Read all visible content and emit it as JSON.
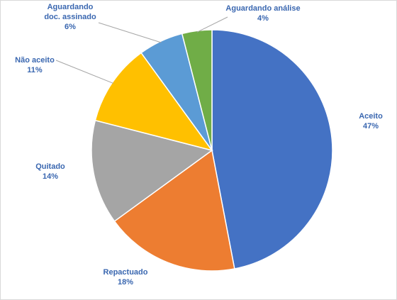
{
  "chart_data": {
    "type": "pie",
    "categories": [
      "Aceito",
      "Repactuado",
      "Quitado",
      "Não aceito",
      "Aguardando doc. assinado",
      "Aguardando análise"
    ],
    "values": [
      47,
      18,
      14,
      11,
      6,
      4
    ],
    "value_labels": [
      "47%",
      "18%",
      "14%",
      "11%",
      "6%",
      "4%"
    ],
    "colors": [
      "#4472c4",
      "#ed7d31",
      "#a5a5a5",
      "#ffc000",
      "#5b9bd5",
      "#70ad47"
    ]
  }
}
